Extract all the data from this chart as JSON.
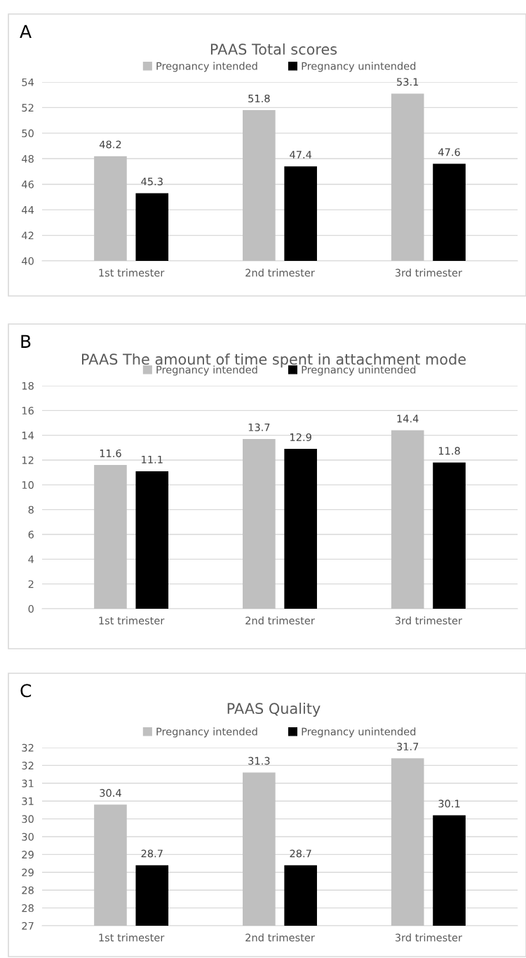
{
  "chart_data": [
    {
      "type": "bar",
      "title": "PAAS Total scores",
      "annotations": [
        "A"
      ],
      "categories": [
        "1st trimester",
        "2nd trimester",
        "3rd trimester"
      ],
      "series": [
        {
          "name": "Pregnancy intended",
          "color": "#bfbfbf",
          "values": [
            48.2,
            51.8,
            53.1
          ]
        },
        {
          "name": "Pregnancy unintended",
          "color": "#000000",
          "values": [
            45.3,
            47.4,
            47.6
          ]
        }
      ],
      "ylim": [
        40,
        54
      ],
      "yticks": [
        40,
        42,
        44,
        46,
        48,
        50,
        52,
        54
      ],
      "grid": "y",
      "legend": "top",
      "data_labels": true
    },
    {
      "type": "bar",
      "title": "PAAS The amount of time spent in attachment mode",
      "annotations": [
        "B"
      ],
      "categories": [
        "1st trimester",
        "2nd trimester",
        "3rd trimester"
      ],
      "series": [
        {
          "name": "Pregnancy intended",
          "color": "#bfbfbf",
          "values": [
            11.6,
            13.7,
            14.4
          ]
        },
        {
          "name": "Pregnancy unintended",
          "color": "#000000",
          "values": [
            11.1,
            12.9,
            11.8
          ]
        }
      ],
      "ylim": [
        0,
        18
      ],
      "yticks": [
        0,
        2,
        4,
        6,
        8,
        10,
        12,
        14,
        16,
        18
      ],
      "grid": "y",
      "legend": "top",
      "data_labels": true
    },
    {
      "type": "bar",
      "title": "PAAS Quality",
      "annotations": [
        "C"
      ],
      "categories": [
        "1st trimester",
        "2nd trimester",
        "3rd trimester"
      ],
      "series": [
        {
          "name": "Pregnancy intended",
          "color": "#bfbfbf",
          "values": [
            30.4,
            31.3,
            31.7
          ]
        },
        {
          "name": "Pregnancy unintended",
          "color": "#000000",
          "values": [
            28.7,
            28.7,
            30.1
          ]
        }
      ],
      "ylim": [
        27,
        32
      ],
      "yticks": [
        27,
        {
          "value": 27.5,
          "label": "28"
        },
        28,
        {
          "value": 28.5,
          "label": "29"
        },
        29,
        {
          "value": 29.5,
          "label": "30"
        },
        30,
        {
          "value": 30.5,
          "label": "31"
        },
        31,
        {
          "value": 31.5,
          "label": "32"
        },
        32
      ],
      "grid": "y",
      "legend": "top",
      "data_labels": true
    }
  ]
}
